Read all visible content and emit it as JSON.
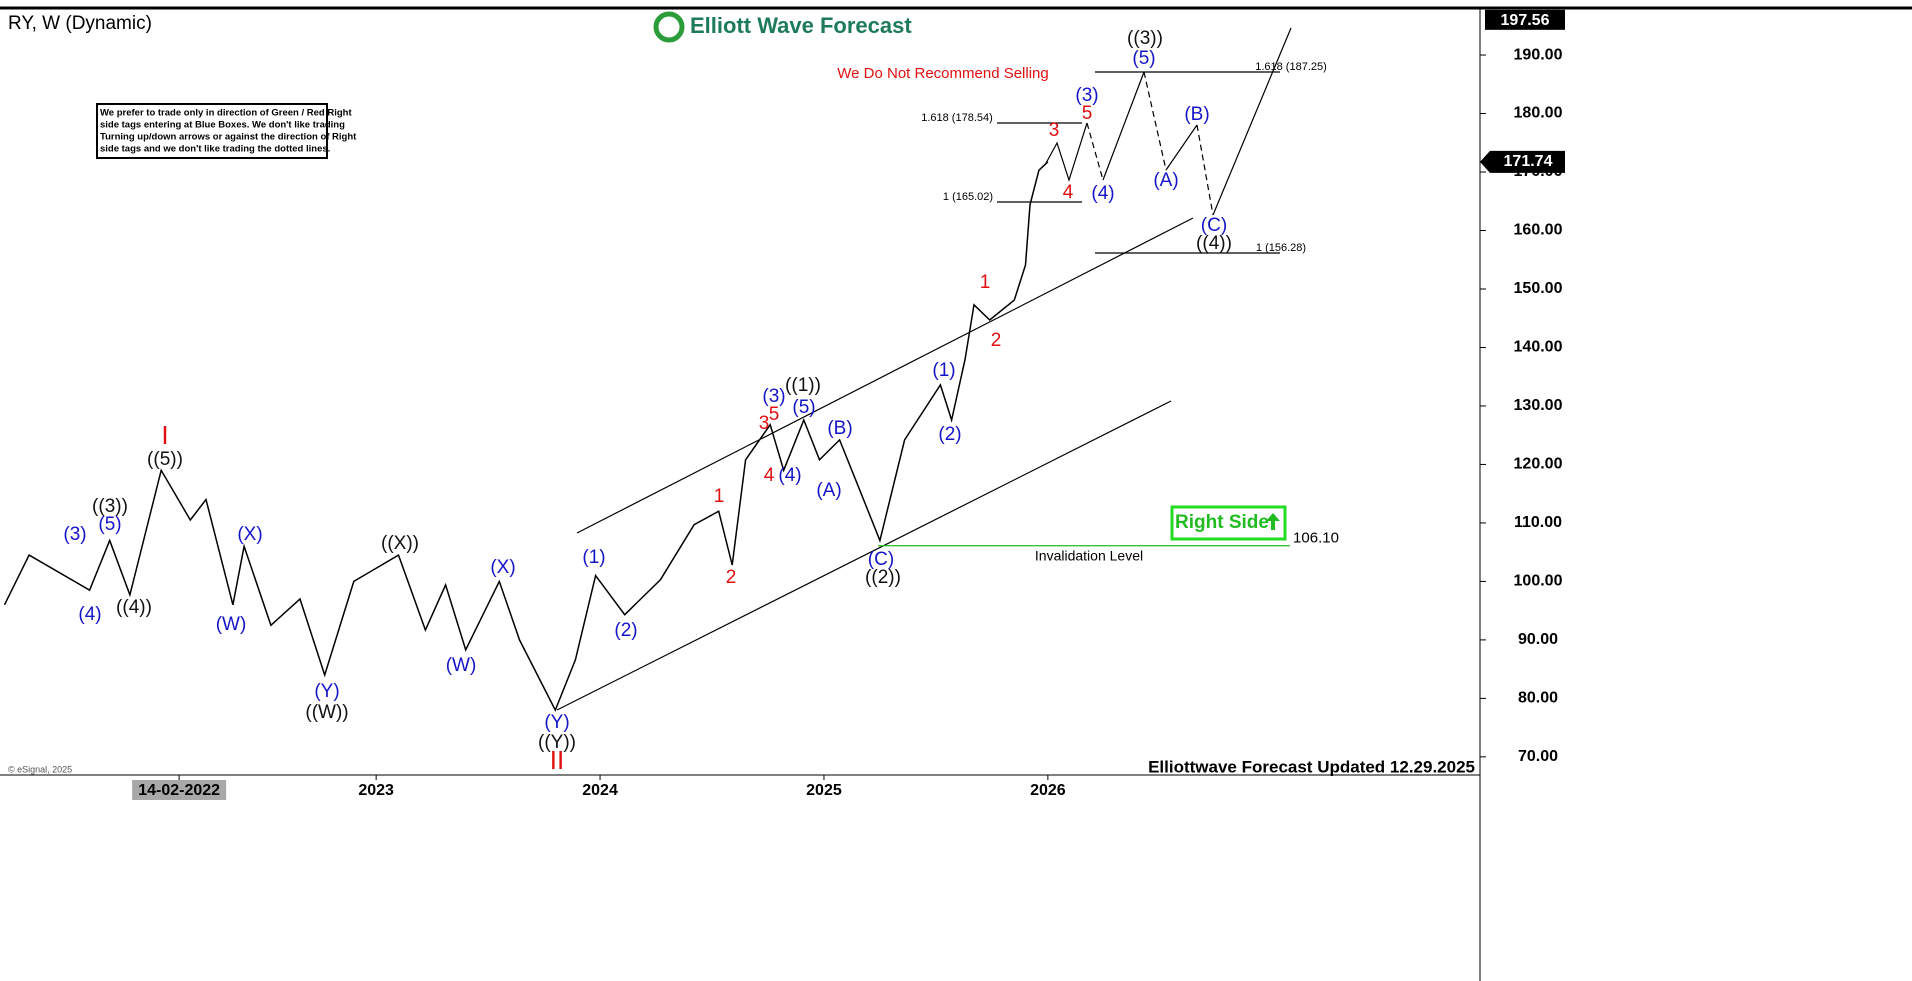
{
  "chart_data": {
    "type": "line",
    "title": "RY, W (Dynamic)",
    "logo": "Elliott Wave Forecast",
    "footer": "Elliottwave Forecast Updated 12.29.2025",
    "copyright": "© eSignal, 2025",
    "color": "#000000",
    "x": [
      2021.34,
      2021.45,
      2021.72,
      2021.81,
      2021.9,
      2022.04,
      2022.17,
      2022.24,
      2022.36,
      2022.41,
      2022.53,
      2022.66,
      2022.77,
      2022.9,
      2023.1,
      2023.22,
      2023.31,
      2023.4,
      2023.55,
      2023.64,
      2023.8,
      2023.89,
      2023.98,
      2024.11,
      2024.27,
      2024.42,
      2024.53,
      2024.59,
      2024.65,
      2024.76,
      2024.82,
      2024.91,
      2024.98,
      2025.07,
      2025.16,
      2025.25,
      2025.36,
      2025.52,
      2025.57,
      2025.63,
      2025.67,
      2025.74,
      2025.85,
      2025.9,
      2025.92,
      2025.96,
      2026.0
    ],
    "values": [
      96,
      104.5,
      98.5,
      107,
      97.7,
      119,
      110.5,
      114,
      96,
      106,
      92.5,
      97,
      84,
      100,
      104.5,
      91.7,
      99.4,
      88.3,
      100,
      90,
      78,
      86.6,
      101,
      94.3,
      100.3,
      109.7,
      112,
      102.8,
      120.8,
      126.8,
      119,
      127.6,
      120.8,
      124.2,
      115.6,
      107,
      124.2,
      133.6,
      127.6,
      137.9,
      147.3,
      144.7,
      148.1,
      154.1,
      164.4,
      170.3,
      171.74
    ],
    "xlim": [
      2021.32,
      2027.93
    ],
    "xticks": [
      {
        "value": 2022.12,
        "label": "14-02-2022"
      },
      2023,
      2024,
      2025,
      2026
    ],
    "ylim": [
      66.9,
      197.7
    ],
    "yticks": [
      {
        "value": 70,
        "label": "70.00"
      },
      {
        "value": 80,
        "label": "80.00"
      },
      {
        "value": 90,
        "label": "90.00"
      },
      {
        "value": 100,
        "label": "100.00"
      },
      {
        "value": 110,
        "label": "110.00"
      },
      {
        "value": 120,
        "label": "120.00"
      },
      {
        "value": 130,
        "label": "130.00"
      },
      {
        "value": 140,
        "label": "140.00"
      },
      {
        "value": 150,
        "label": "150.00"
      },
      {
        "value": 160,
        "label": "160.00"
      },
      {
        "value": 170,
        "label": "170.00"
      },
      {
        "value": 180,
        "label": "180.00"
      },
      {
        "value": 190,
        "label": "190.00"
      }
    ],
    "top_price": 197.56,
    "last_price": 171.74,
    "invalidation": {
      "value": 106.1,
      "label": "106.10",
      "text": "Invalidation Level"
    },
    "right_side": "Right Side",
    "warning": "We Do Not Recommend Selling",
    "note": [
      "We prefer to trade only in direction of Green / Red Right",
      "side tags entering at Blue Boxes. We don't like trading",
      "Turning up/down arrows or against the direction of Right",
      "side tags and we don't like trading the dotted lines."
    ],
    "fib_labels": [
      "1.618 (178.54)",
      "1 (165.02)",
      "1.618 (187.25)",
      "1 (156.28)"
    ],
    "wave_colors": {
      "blue": "#1515c8",
      "black": "#111111",
      "red": "#e01010"
    },
    "waves": [
      {
        "text": "(3)",
        "color": "blue"
      },
      {
        "text": "(5)",
        "color": "blue"
      },
      {
        "text": "(4)",
        "color": "blue"
      },
      {
        "text": "(X)",
        "color": "blue"
      },
      {
        "text": "(W)",
        "color": "blue"
      },
      {
        "text": "(Y)",
        "color": "blue"
      },
      {
        "text": "(X)",
        "color": "blue"
      },
      {
        "text": "(W)",
        "color": "blue"
      },
      {
        "text": "(Y)",
        "color": "blue"
      },
      {
        "text": "(1)",
        "color": "blue"
      },
      {
        "text": "(2)",
        "color": "blue"
      },
      {
        "text": "(3)",
        "color": "blue"
      },
      {
        "text": "(5)",
        "color": "blue"
      },
      {
        "text": "(4)",
        "color": "blue"
      },
      {
        "text": "(B)",
        "color": "blue"
      },
      {
        "text": "(A)",
        "color": "blue"
      },
      {
        "text": "(C)",
        "color": "blue"
      },
      {
        "text": "(1)",
        "color": "blue"
      },
      {
        "text": "(2)",
        "color": "blue"
      },
      {
        "text": "(3)",
        "color": "blue"
      },
      {
        "text": "(4)",
        "color": "blue"
      },
      {
        "text": "(5)",
        "color": "blue"
      },
      {
        "text": "(A)",
        "color": "blue"
      },
      {
        "text": "(B)",
        "color": "blue"
      },
      {
        "text": "(C)",
        "color": "blue"
      },
      {
        "text": "((3))",
        "color": "black"
      },
      {
        "text": "((4))",
        "color": "black"
      },
      {
        "text": "((5))",
        "color": "black"
      },
      {
        "text": "((X))",
        "color": "black"
      },
      {
        "text": "((W))",
        "color": "black"
      },
      {
        "text": "((Y))",
        "color": "black"
      },
      {
        "text": "((1))",
        "color": "black"
      },
      {
        "text": "((2))",
        "color": "black"
      },
      {
        "text": "((3))",
        "color": "black"
      },
      {
        "text": "((4))",
        "color": "black"
      },
      {
        "text": "I",
        "color": "red"
      },
      {
        "text": "II",
        "color": "red"
      },
      {
        "text": "1",
        "color": "red"
      },
      {
        "text": "2",
        "color": "red"
      },
      {
        "text": "3",
        "color": "red"
      },
      {
        "text": "5",
        "color": "red"
      },
      {
        "text": "4",
        "color": "red"
      },
      {
        "text": "1",
        "color": "red"
      },
      {
        "text": "2",
        "color": "red"
      },
      {
        "text": "3",
        "color": "red"
      },
      {
        "text": "5",
        "color": "red"
      },
      {
        "text": "4",
        "color": "red"
      }
    ]
  }
}
